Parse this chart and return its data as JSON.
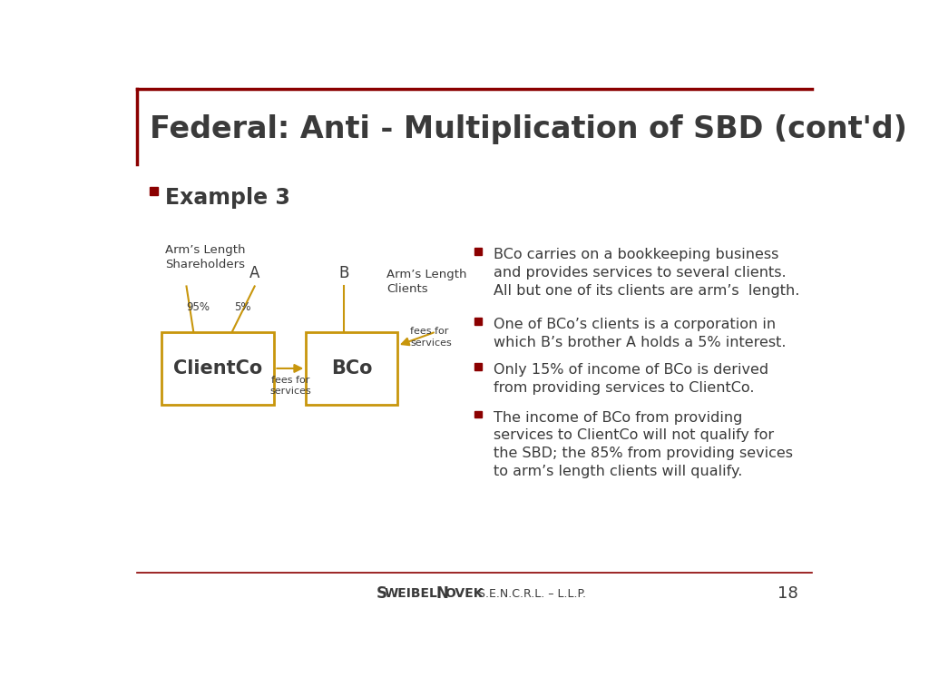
{
  "title": "Federal: Anti - Multiplication of SBD (cont'd)",
  "title_color": "#3a3a3a",
  "title_fontsize": 24,
  "bg_color": "#ffffff",
  "border_color": "#8B0000",
  "example_label": "Example 3",
  "example_fontsize": 17,
  "bullet_color": "#8B0000",
  "box_color": "#C8960C",
  "diagram_text_color": "#3a3a3a",
  "bullet_points": [
    "BCo carries on a bookkeeping business\nand provides services to several clients.\nAll but one of its clients are arm’s  length.",
    "One of BCo’s clients is a corporation in\nwhich B’s brother A holds a 5% interest.",
    "Only 15% of income of BCo is derived\nfrom providing services to ClientCo.",
    "The income of BCo from providing\nservices to ClientCo will not qualify for\nthe SBD; the 85% from providing sevices\nto arm’s length clients will qualify."
  ],
  "footer_page": "18",
  "line_color": "#8B0000",
  "clientco_label": "ClientCo",
  "bco_label": "BCo",
  "arm_shareholders": "Arm’s Length\nShareholders",
  "arm_clients": "Arm’s Length\nClients",
  "label_A": "A",
  "label_B": "B",
  "pct_95": "95%",
  "pct_5": "5%",
  "fees_label": "fees for\nservices"
}
